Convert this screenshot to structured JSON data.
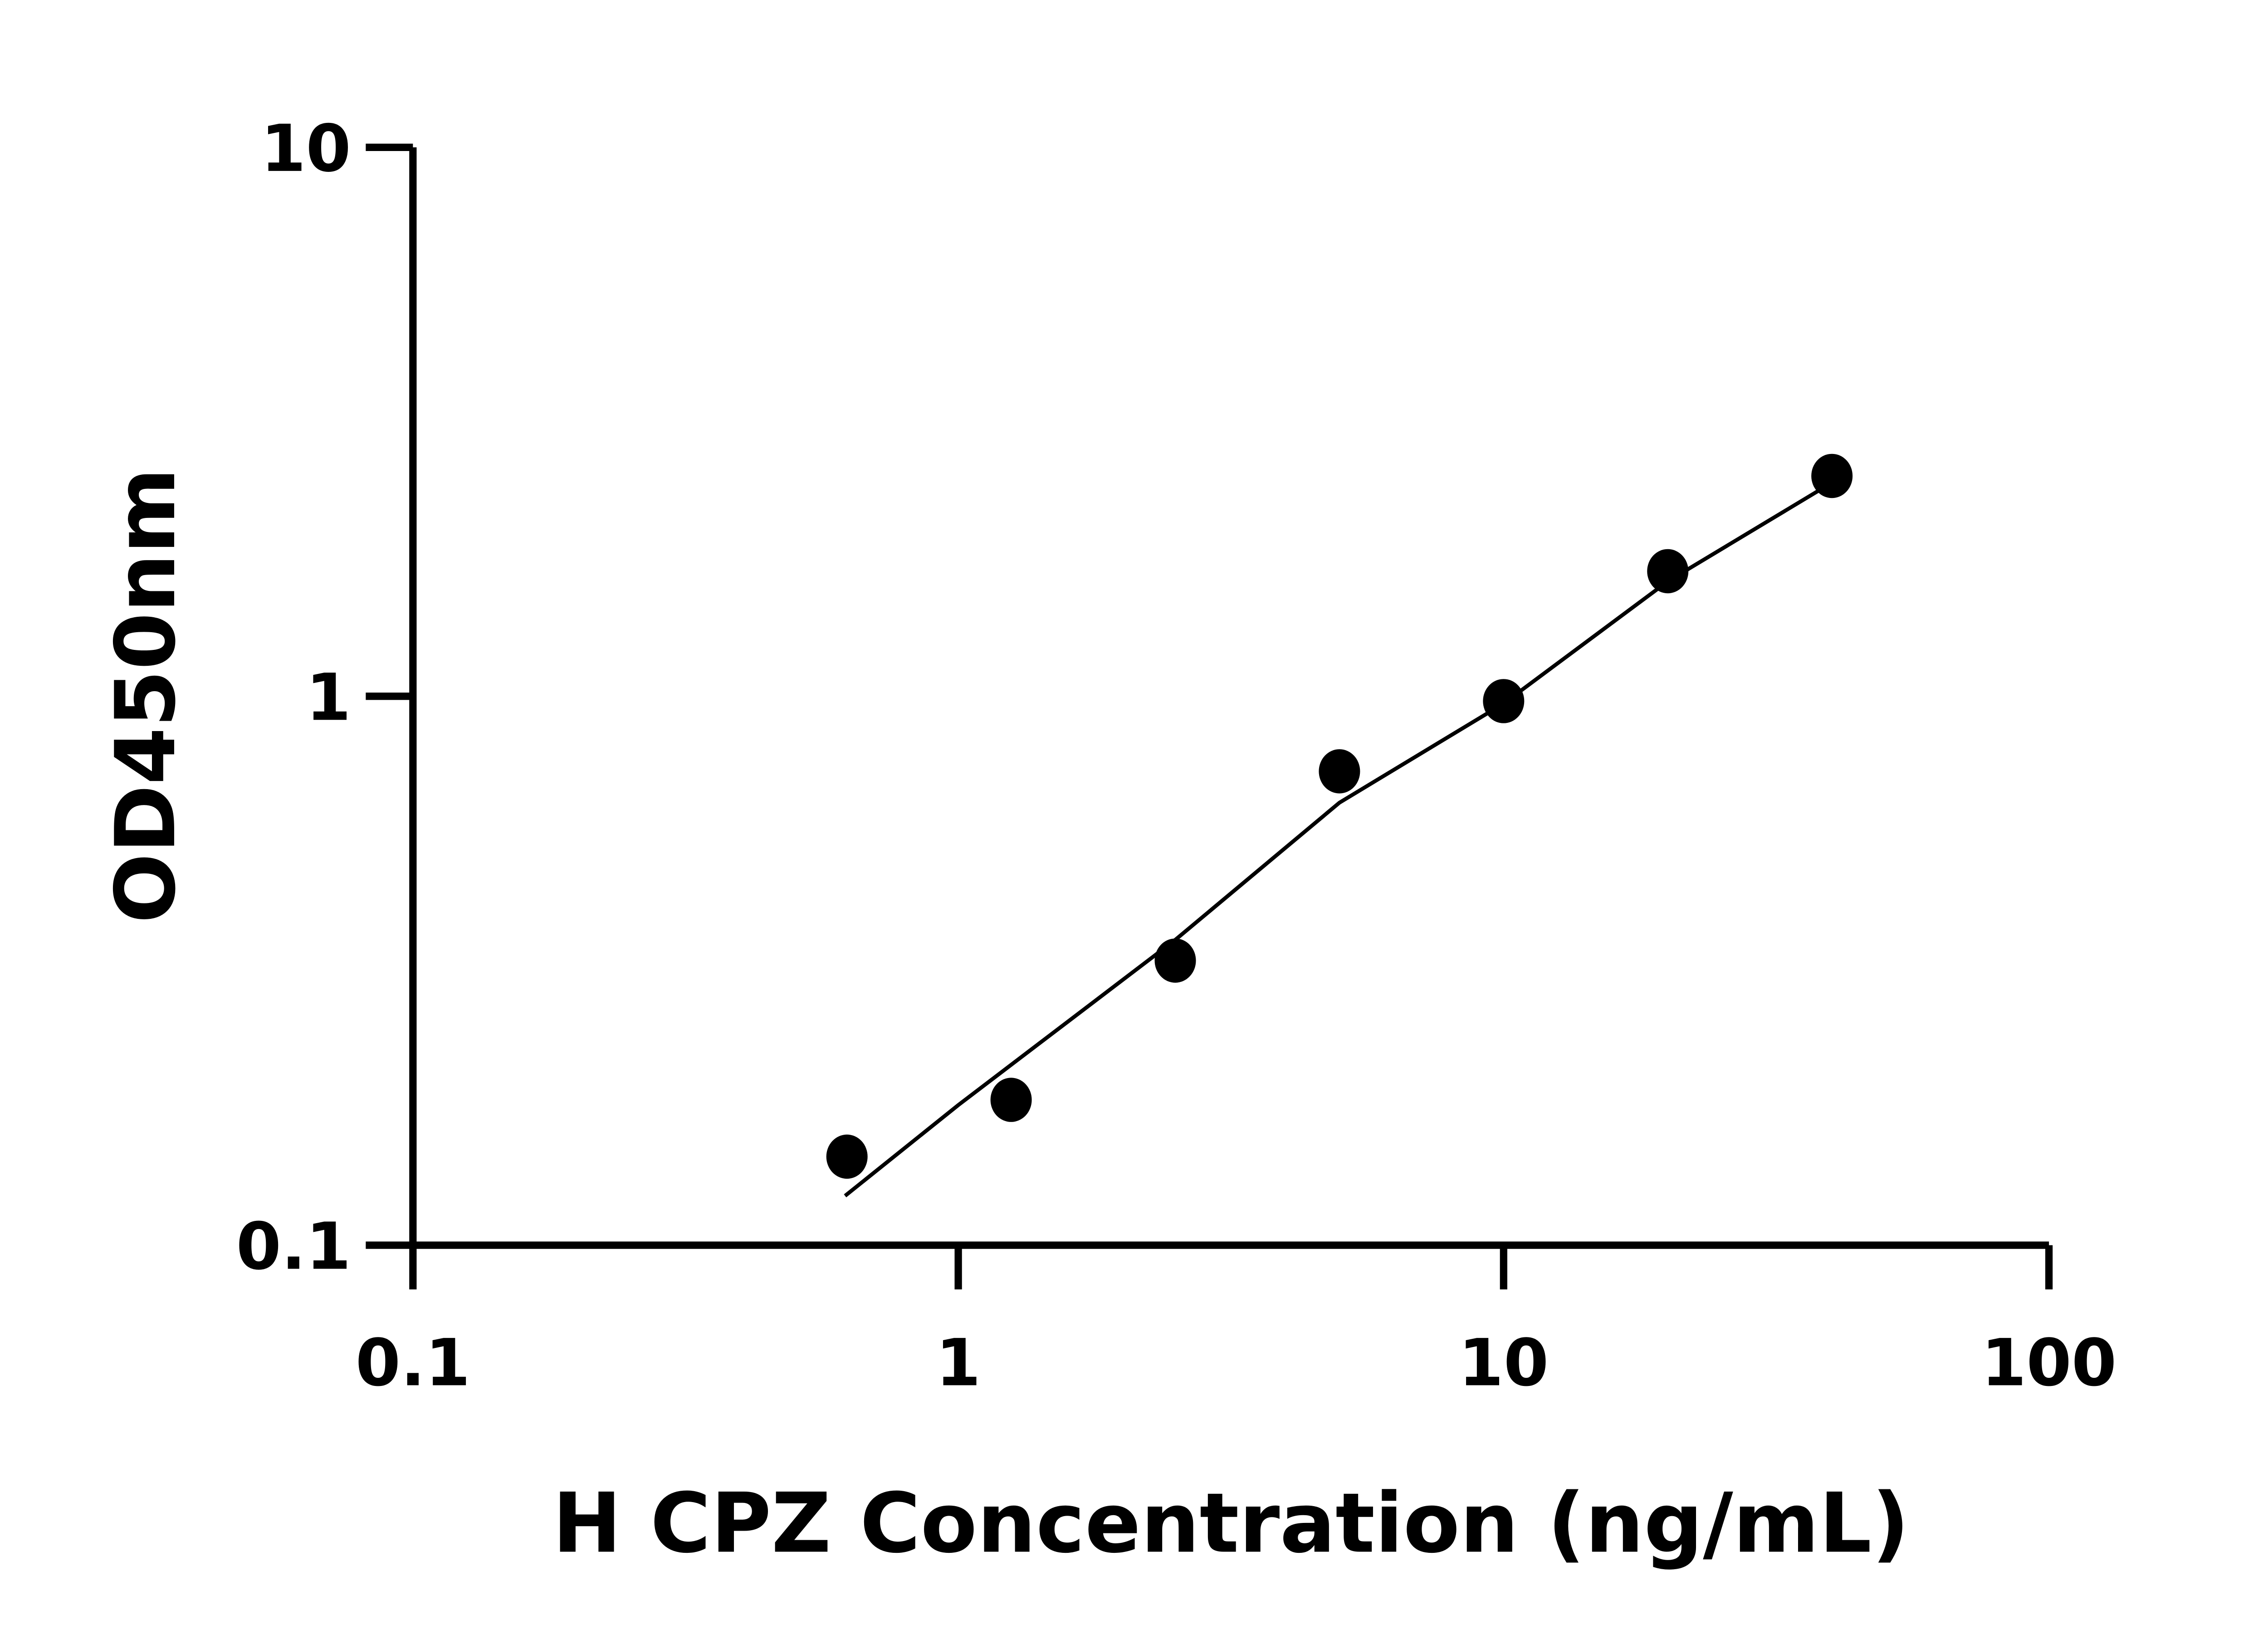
{
  "chart_data": {
    "type": "scatter",
    "title": "",
    "xlabel": "H CPZ Concentration (ng/mL)",
    "ylabel": "OD450nm",
    "xscale": "log",
    "yscale": "log",
    "xlim": [
      0.1,
      100
    ],
    "ylim": [
      0.1,
      10
    ],
    "xticks": [
      0.1,
      1,
      10,
      100
    ],
    "xtick_labels": [
      "0.1",
      "1",
      "10",
      "100"
    ],
    "yticks": [
      0.1,
      1,
      10
    ],
    "ytick_labels": [
      "0.1",
      "1",
      "10"
    ],
    "grid": false,
    "legend": "none",
    "color": "#000000",
    "series": [
      {
        "x": [
          0.625,
          1.25,
          2.5,
          5,
          10,
          20,
          40
        ],
        "y": [
          0.145,
          0.184,
          0.33,
          0.73,
          0.98,
          1.69,
          2.52
        ]
      }
    ],
    "fit_curve": {
      "x": [
        0.62,
        1,
        2.5,
        5,
        10,
        20,
        40
      ],
      "y": [
        0.123,
        0.18,
        0.36,
        0.64,
        0.97,
        1.62,
        2.45
      ]
    }
  }
}
